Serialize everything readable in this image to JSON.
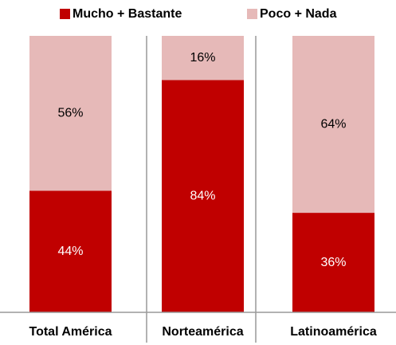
{
  "chart_data": {
    "type": "stacked_bar",
    "categories": [
      "Total América",
      "Norteamérica",
      "Latinoamérica"
    ],
    "series": [
      {
        "name": "Mucho + Bastante",
        "color": "#c00000",
        "values": [
          44,
          84,
          36
        ],
        "value_labels": [
          "44%",
          "84%",
          "36%"
        ]
      },
      {
        "name": "Poco + Nada",
        "color": "#e6b9b8",
        "values": [
          56,
          16,
          64
        ],
        "value_labels": [
          "56%",
          "16%",
          "64%"
        ]
      }
    ],
    "ylim": [
      0,
      100
    ]
  }
}
